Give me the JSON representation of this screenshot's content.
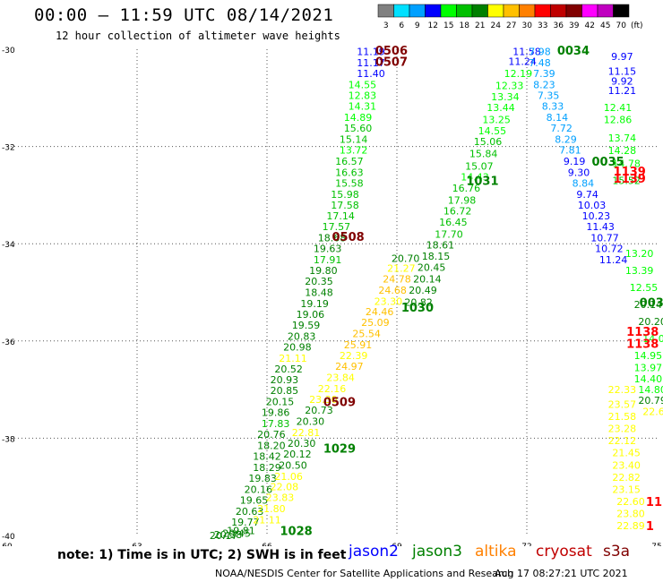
{
  "header": {
    "title": "00:00 – 11:59 UTC 08/14/2021",
    "subtitle": "12 hour collection of altimeter wave heights"
  },
  "colorbar": {
    "unit": "(ft)",
    "bins": [
      {
        "label": "3",
        "color": "#808080"
      },
      {
        "label": "6",
        "color": "#00e0ff"
      },
      {
        "label": "9",
        "color": "#00a0ff"
      },
      {
        "label": "12",
        "color": "#0000ff"
      },
      {
        "label": "15",
        "color": "#00ff00"
      },
      {
        "label": "18",
        "color": "#00c000"
      },
      {
        "label": "21",
        "color": "#008000"
      },
      {
        "label": "24",
        "color": "#ffff00"
      },
      {
        "label": "27",
        "color": "#ffc000"
      },
      {
        "label": "30",
        "color": "#ff8000"
      },
      {
        "label": "33",
        "color": "#ff0000"
      },
      {
        "label": "36",
        "color": "#c00000"
      },
      {
        "label": "39",
        "color": "#800000"
      },
      {
        "label": "42",
        "color": "#ff00ff"
      },
      {
        "label": "45",
        "color": "#c000c0"
      },
      {
        "label": "70",
        "color": "#000000"
      }
    ]
  },
  "footer": {
    "note": "note: 1) Time is in UTC; 2) SWH is in feet",
    "legend": [
      {
        "name": "jason2",
        "color": "#0000ff"
      },
      {
        "name": "jason3",
        "color": "#008000"
      },
      {
        "name": "altika",
        "color": "#ff8000"
      },
      {
        "name": "cryosat",
        "color": "#c00000"
      },
      {
        "name": "s3a",
        "color": "#800000"
      }
    ],
    "credit": "NOAA/NESDIS Center for Satellite Applications and Research",
    "timestamp": "Aug 17 08:27:21 UTC 2021"
  },
  "chart_data": {
    "type": "scatter",
    "xlim": [
      60,
      75
    ],
    "ylim": [
      -40,
      -30
    ],
    "x_ticks": [
      60,
      63,
      66,
      69,
      72,
      75
    ],
    "y_ticks": [
      -30,
      -32,
      -34,
      -36,
      -38,
      -40
    ],
    "x_tick_labels": [
      "60",
      "63",
      "66",
      "69",
      "72",
      "75"
    ],
    "y_tick_labels": [
      "-30",
      "-32",
      "-34",
      "-36",
      "-38",
      "-40"
    ],
    "grid": true,
    "bin_edges": [
      3,
      6,
      9,
      12,
      15,
      18,
      21,
      24,
      27,
      30,
      33,
      36,
      39,
      42,
      45,
      70
    ],
    "bin_colors": [
      "#808080",
      "#00e0ff",
      "#00a0ff",
      "#0000ff",
      "#00ff00",
      "#00c000",
      "#008000",
      "#ffff00",
      "#ffc000",
      "#ff8000",
      "#ff0000",
      "#c00000",
      "#800000",
      "#ff00ff",
      "#c000c0",
      "#000000"
    ],
    "tracks": [
      {
        "x": [
          68.4,
          68.4,
          68.4,
          68.2,
          68.2,
          68.2,
          68.1,
          68.1,
          68.0,
          68.0,
          67.9,
          67.9,
          67.9,
          67.8,
          67.8,
          67.7,
          67.6,
          67.5,
          67.4,
          67.4,
          67.3,
          67.2,
          67.2,
          67.1,
          67.0,
          66.9,
          66.8,
          66.7,
          66.6,
          66.5,
          66.4,
          66.4,
          66.3,
          66.2,
          66.2,
          66.1,
          66.1,
          66.0,
          66.0,
          65.9,
          65.8,
          65.7,
          65.6,
          65.5,
          65.4,
          65.3,
          65.1,
          65.0
        ],
        "y": [
          -30.05,
          -30.28,
          -30.5,
          -30.73,
          -30.95,
          -31.17,
          -31.4,
          -31.62,
          -31.85,
          -32.07,
          -32.3,
          -32.53,
          -32.75,
          -32.98,
          -33.2,
          -33.43,
          -33.65,
          -33.88,
          -34.1,
          -34.33,
          -34.55,
          -34.77,
          -35.0,
          -35.23,
          -35.45,
          -35.67,
          -35.9,
          -36.12,
          -36.35,
          -36.57,
          -36.8,
          -37.02,
          -37.25,
          -37.47,
          -37.7,
          -37.92,
          -38.15,
          -38.37,
          -38.6,
          -38.82,
          -39.05,
          -39.27,
          -39.5,
          -39.72,
          -39.9,
          -39.95,
          -39.98,
          -40.0
        ],
        "values": [
          11.19,
          11.17,
          11.4,
          14.55,
          12.83,
          14.31,
          14.89,
          15.6,
          15.14,
          13.72,
          16.57,
          16.63,
          15.58,
          15.98,
          17.58,
          17.14,
          17.57,
          18.68,
          19.63,
          17.91,
          19.8,
          20.35,
          18.48,
          19.19,
          19.06,
          19.59,
          20.83,
          20.98,
          21.11,
          20.52,
          20.93,
          20.85,
          20.15,
          19.86,
          17.83,
          20.76,
          18.2,
          18.42,
          18.29,
          19.83,
          20.16,
          19.65,
          20.63,
          19.77,
          19.81,
          20.45,
          20.38,
          20.17
        ]
      },
      {
        "x": [
          72.0,
          71.9,
          71.8,
          71.6,
          71.5,
          71.4,
          71.3,
          71.2,
          71.1,
          71.0,
          70.9,
          70.8,
          70.6,
          70.5,
          70.4,
          70.3,
          70.2,
          70.0,
          69.9,
          69.8,
          69.7,
          69.6,
          69.5
        ],
        "y": [
          -30.05,
          -30.25,
          -30.5,
          -30.75,
          -30.98,
          -31.2,
          -31.45,
          -31.68,
          -31.9,
          -32.15,
          -32.4,
          -32.62,
          -32.85,
          -33.1,
          -33.32,
          -33.55,
          -33.8,
          -34.02,
          -34.25,
          -34.48,
          -34.72,
          -34.95,
          -35.2
        ],
        "values": [
          11.58,
          11.24,
          12.19,
          12.33,
          13.34,
          13.44,
          13.25,
          14.55,
          15.06,
          15.84,
          15.07,
          14.43,
          16.76,
          17.98,
          16.72,
          16.45,
          17.7,
          18.61,
          18.15,
          20.45,
          20.14,
          20.49,
          20.82
        ]
      },
      {
        "x": [
          72.3,
          72.3,
          72.4,
          72.4,
          72.5,
          72.6,
          72.7,
          72.8,
          72.9,
          73.0
        ],
        "y": [
          -30.05,
          -30.28,
          -30.5,
          -30.73,
          -30.95,
          -31.17,
          -31.4,
          -31.62,
          -31.85,
          -32.07
        ],
        "values": [
          7.98,
          7.48,
          7.39,
          8.23,
          7.35,
          8.33,
          8.14,
          7.72,
          8.29,
          7.81
        ]
      },
      {
        "x": [
          73.1,
          73.2,
          73.3,
          73.4,
          73.5,
          73.6,
          73.7,
          73.8,
          73.9,
          74.0
        ],
        "y": [
          -32.3,
          -32.53,
          -32.75,
          -32.98,
          -33.2,
          -33.43,
          -33.65,
          -33.88,
          -34.1,
          -34.33
        ],
        "values": [
          9.19,
          9.3,
          8.84,
          9.74,
          10.03,
          10.23,
          11.43,
          10.77,
          10.72,
          11.24
        ]
      },
      {
        "x": [
          74.2,
          74.2,
          74.2,
          74.2
        ],
        "y": [
          -30.15,
          -30.45,
          -30.65,
          -30.85
        ],
        "values": [
          9.97,
          11.15,
          9.92,
          11.21
        ]
      },
      {
        "x": [
          74.1,
          74.1,
          74.2,
          74.2,
          74.3,
          74.3
        ],
        "y": [
          -31.2,
          -31.45,
          -31.82,
          -32.08,
          -32.35,
          -32.7
        ],
        "values": [
          12.41,
          12.86,
          13.74,
          14.28,
          14.78,
          15.52
        ]
      },
      {
        "x": [
          74.6,
          74.6,
          74.7,
          74.8,
          74.9,
          75.0
        ],
        "y": [
          -34.2,
          -34.55,
          -34.9,
          -35.25,
          -35.6,
          -35.95
        ],
        "values": [
          13.2,
          13.39,
          12.55,
          20.14,
          20.2,
          14.03
        ]
      },
      {
        "x": [
          74.8,
          74.8,
          74.8,
          74.9,
          74.9,
          75.0
        ],
        "y": [
          -36.3,
          -36.55,
          -36.78,
          -37.0,
          -37.22,
          -37.45
        ],
        "values": [
          14.95,
          13.97,
          14.4,
          14.8,
          20.79,
          22.61
        ]
      },
      {
        "x": [
          69.2,
          69.1,
          69.0,
          68.9,
          68.8,
          68.6,
          68.5,
          68.3,
          68.1,
          68.0,
          67.9,
          67.7,
          67.5,
          67.3,
          67.2,
          67.0,
          66.9,
          66.8,
          66.7,
          66.6,
          66.5,
          66.4,
          66.3,
          66.1,
          66.0
        ],
        "y": [
          -34.3,
          -34.5,
          -34.72,
          -34.95,
          -35.18,
          -35.4,
          -35.62,
          -35.85,
          -36.08,
          -36.3,
          -36.52,
          -36.75,
          -36.98,
          -37.2,
          -37.42,
          -37.65,
          -37.88,
          -38.1,
          -38.32,
          -38.55,
          -38.78,
          -39.0,
          -39.22,
          -39.45,
          -39.68
        ],
        "values": [
          20.7,
          21.27,
          24.78,
          24.68,
          23.3,
          24.46,
          25.09,
          25.54,
          25.91,
          22.39,
          24.97,
          23.84,
          22.16,
          23.3,
          20.73,
          20.3,
          22.81,
          20.3,
          20.12,
          20.5,
          21.06,
          22.08,
          23.83,
          21.8,
          21.11
        ]
      },
      {
        "x": [
          74.2,
          74.2,
          74.2,
          74.2,
          74.2,
          74.3,
          74.3,
          74.3,
          74.3,
          74.4,
          74.4,
          74.4
        ],
        "y": [
          -37.0,
          -37.3,
          -37.55,
          -37.8,
          -38.05,
          -38.3,
          -38.55,
          -38.8,
          -39.05,
          -39.3,
          -39.55,
          -39.8
        ],
        "values": [
          22.33,
          23.57,
          21.58,
          23.28,
          22.12,
          21.45,
          23.4,
          22.82,
          23.15,
          22.6,
          23.8,
          22.89
        ]
      }
    ],
    "annotations": [
      {
        "label": "0506",
        "x": 68.5,
        "y": -30.02,
        "color": "#800000"
      },
      {
        "label": "0507",
        "x": 68.5,
        "y": -30.25,
        "color": "#800000"
      },
      {
        "label": "0034",
        "x": 72.7,
        "y": -30.02,
        "color": "#008000"
      },
      {
        "label": "1031",
        "x": 70.6,
        "y": -32.7,
        "color": "#008000"
      },
      {
        "label": "0035",
        "x": 73.5,
        "y": -32.3,
        "color": "#008000"
      },
      {
        "label": "1139",
        "x": 74.0,
        "y": -32.5,
        "color": "#ff0000"
      },
      {
        "label": "1139",
        "x": 74.0,
        "y": -32.65,
        "color": "#ff0000"
      },
      {
        "label": "0508",
        "x": 67.5,
        "y": -33.85,
        "color": "#800000"
      },
      {
        "label": "1030",
        "x": 69.1,
        "y": -35.3,
        "color": "#008000"
      },
      {
        "label": "003",
        "x": 74.6,
        "y": -35.2,
        "color": "#008000"
      },
      {
        "label": "1138",
        "x": 74.3,
        "y": -35.8,
        "color": "#ff0000"
      },
      {
        "label": "1138",
        "x": 74.3,
        "y": -36.05,
        "color": "#ff0000"
      },
      {
        "label": "0509",
        "x": 67.3,
        "y": -37.25,
        "color": "#800000"
      },
      {
        "label": "1029",
        "x": 67.3,
        "y": -38.2,
        "color": "#008000"
      },
      {
        "label": "1028",
        "x": 66.3,
        "y": -39.9,
        "color": "#008000"
      },
      {
        "label": "11",
        "x": 74.75,
        "y": -39.3,
        "color": "#ff0000"
      },
      {
        "label": "1",
        "x": 74.75,
        "y": -39.8,
        "color": "#ff0000"
      }
    ]
  }
}
